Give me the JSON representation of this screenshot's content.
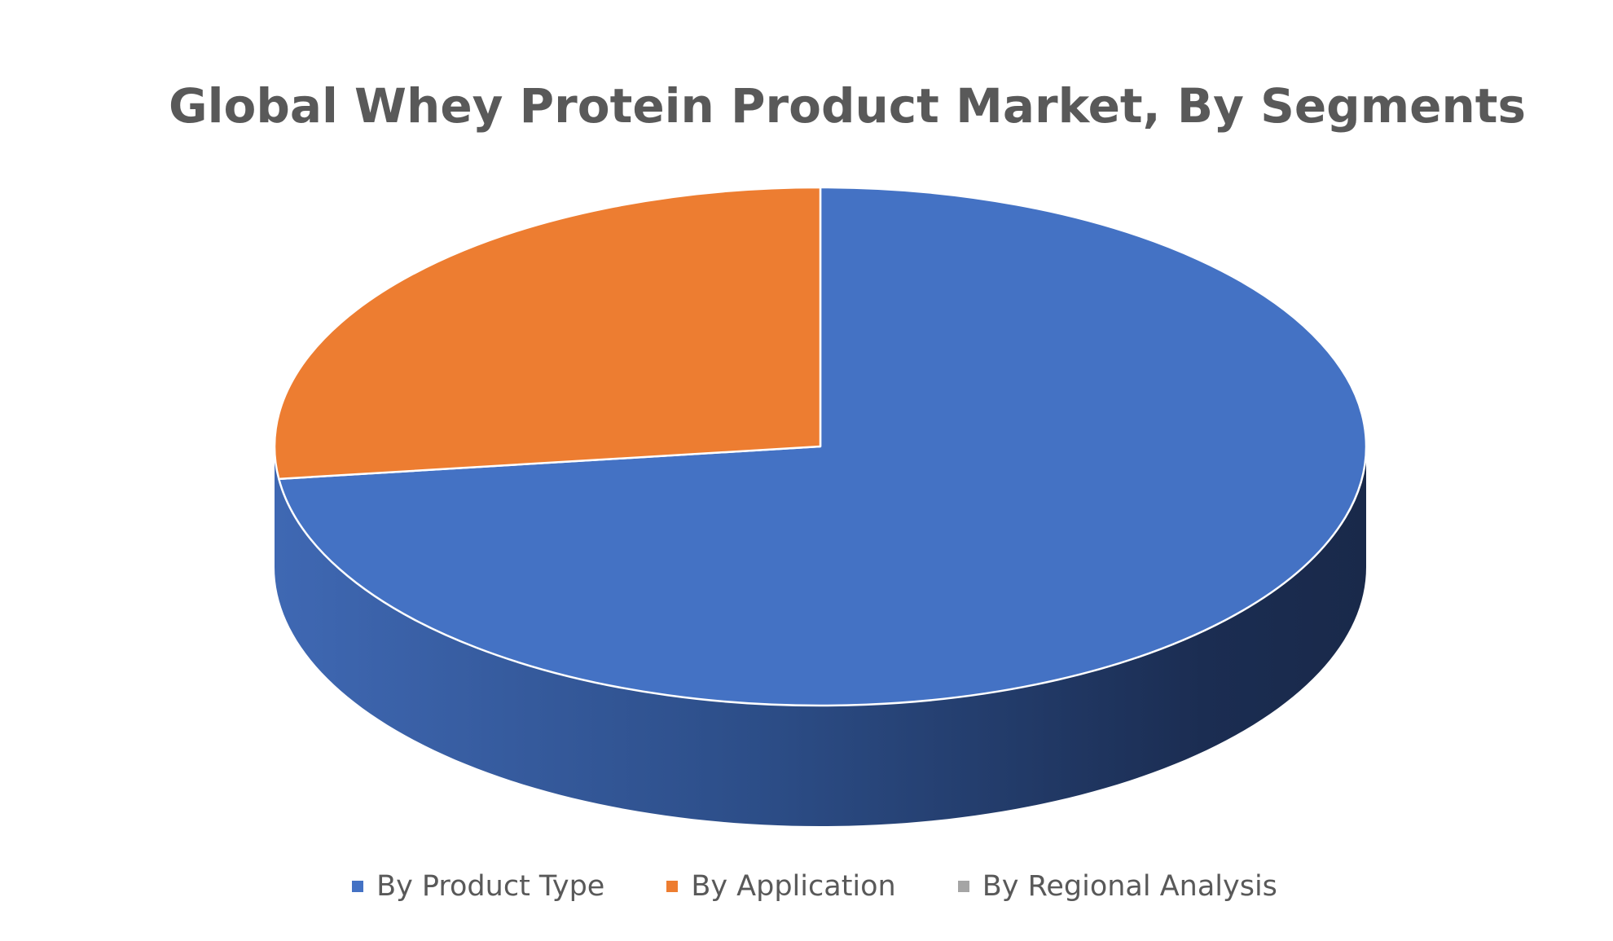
{
  "chart_data": {
    "type": "pie",
    "style": "3d",
    "title": "Global Whey Protein Product Market, By Segments",
    "legend_position": "bottom",
    "slices": [
      {
        "name": "By Product Type",
        "value": 73,
        "color": "#4472C4"
      },
      {
        "name": "By Application",
        "value": 27,
        "color": "#ED7D31"
      },
      {
        "name": "By Regional Analysis",
        "value": 0,
        "color": "#A5A5A5"
      }
    ]
  }
}
